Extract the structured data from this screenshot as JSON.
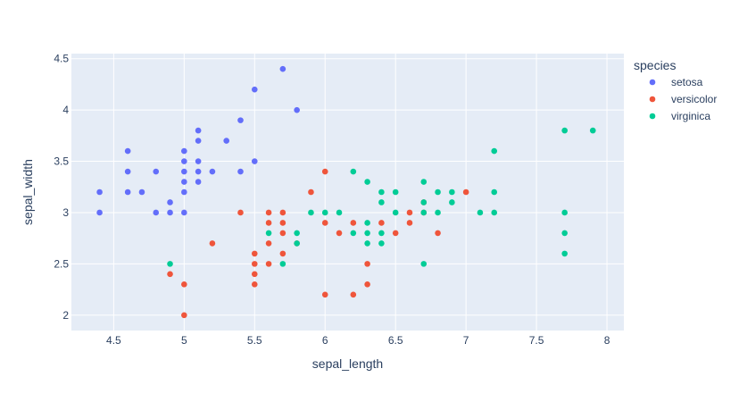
{
  "chart_data": {
    "type": "scatter",
    "xlabel": "sepal_length",
    "ylabel": "sepal_width",
    "xlim": [
      4.2,
      8.12
    ],
    "ylim": [
      1.85,
      4.55
    ],
    "x_ticks": [
      4.5,
      5,
      5.5,
      6,
      6.5,
      7,
      7.5,
      8
    ],
    "x_tick_labels": [
      "4.5",
      "5",
      "5.5",
      "6",
      "6.5",
      "7",
      "7.5",
      "8"
    ],
    "y_ticks": [
      2,
      2.5,
      3,
      3.5,
      4,
      4.5
    ],
    "y_tick_labels": [
      "2",
      "2.5",
      "3",
      "3.5",
      "4",
      "4.5"
    ],
    "grid": true,
    "legend_title": "species",
    "legend_position": "right",
    "plot_background": "#e5ecf6",
    "series": [
      {
        "name": "setosa",
        "color": "#636efa",
        "points": [
          [
            4.4,
            3.2
          ],
          [
            4.4,
            3.0
          ],
          [
            4.6,
            3.6
          ],
          [
            4.6,
            3.4
          ],
          [
            4.6,
            3.2
          ],
          [
            4.7,
            3.2
          ],
          [
            4.8,
            3.4
          ],
          [
            4.8,
            3.0
          ],
          [
            4.9,
            3.1
          ],
          [
            4.9,
            3.0
          ],
          [
            5.0,
            3.6
          ],
          [
            5.0,
            3.5
          ],
          [
            5.0,
            3.4
          ],
          [
            5.0,
            3.3
          ],
          [
            5.0,
            3.2
          ],
          [
            5.0,
            3.0
          ],
          [
            5.1,
            3.8
          ],
          [
            5.1,
            3.7
          ],
          [
            5.1,
            3.5
          ],
          [
            5.1,
            3.4
          ],
          [
            5.1,
            3.3
          ],
          [
            5.2,
            3.4
          ],
          [
            5.3,
            3.7
          ],
          [
            5.4,
            3.9
          ],
          [
            5.4,
            3.4
          ],
          [
            5.5,
            4.2
          ],
          [
            5.5,
            3.5
          ],
          [
            5.7,
            4.4
          ],
          [
            5.8,
            4.0
          ]
        ]
      },
      {
        "name": "versicolor",
        "color": "#ef553b",
        "points": [
          [
            4.9,
            2.4
          ],
          [
            5.0,
            2.3
          ],
          [
            5.0,
            2.0
          ],
          [
            5.2,
            2.7
          ],
          [
            5.4,
            3.0
          ],
          [
            5.5,
            2.6
          ],
          [
            5.5,
            2.5
          ],
          [
            5.5,
            2.4
          ],
          [
            5.5,
            2.3
          ],
          [
            5.6,
            3.0
          ],
          [
            5.6,
            2.9
          ],
          [
            5.6,
            2.7
          ],
          [
            5.6,
            2.5
          ],
          [
            5.7,
            3.0
          ],
          [
            5.7,
            2.9
          ],
          [
            5.7,
            2.8
          ],
          [
            5.7,
            2.6
          ],
          [
            5.8,
            2.7
          ],
          [
            5.9,
            3.2
          ],
          [
            6.0,
            3.4
          ],
          [
            6.0,
            2.9
          ],
          [
            6.0,
            2.2
          ],
          [
            6.1,
            2.8
          ],
          [
            6.2,
            2.9
          ],
          [
            6.2,
            2.2
          ],
          [
            6.3,
            2.5
          ],
          [
            6.3,
            2.3
          ],
          [
            6.4,
            2.9
          ],
          [
            6.5,
            2.8
          ],
          [
            6.6,
            3.0
          ],
          [
            6.6,
            2.9
          ],
          [
            6.7,
            3.1
          ],
          [
            6.7,
            3.0
          ],
          [
            6.8,
            2.8
          ],
          [
            7.0,
            3.2
          ]
        ]
      },
      {
        "name": "virginica",
        "color": "#00cc96",
        "points": [
          [
            4.9,
            2.5
          ],
          [
            5.6,
            2.8
          ],
          [
            5.7,
            2.5
          ],
          [
            5.8,
            2.8
          ],
          [
            5.8,
            2.7
          ],
          [
            5.9,
            3.0
          ],
          [
            6.0,
            3.0
          ],
          [
            6.1,
            3.0
          ],
          [
            6.2,
            3.4
          ],
          [
            6.2,
            2.8
          ],
          [
            6.3,
            3.3
          ],
          [
            6.3,
            2.9
          ],
          [
            6.3,
            2.8
          ],
          [
            6.3,
            2.7
          ],
          [
            6.4,
            3.2
          ],
          [
            6.4,
            3.1
          ],
          [
            6.4,
            2.8
          ],
          [
            6.4,
            2.7
          ],
          [
            6.5,
            3.2
          ],
          [
            6.5,
            3.0
          ],
          [
            6.7,
            3.3
          ],
          [
            6.7,
            3.1
          ],
          [
            6.7,
            3.0
          ],
          [
            6.7,
            2.5
          ],
          [
            6.8,
            3.2
          ],
          [
            6.8,
            3.0
          ],
          [
            6.9,
            3.2
          ],
          [
            6.9,
            3.1
          ],
          [
            7.1,
            3.0
          ],
          [
            7.2,
            3.6
          ],
          [
            7.2,
            3.2
          ],
          [
            7.2,
            3.0
          ],
          [
            7.7,
            3.8
          ],
          [
            7.7,
            3.0
          ],
          [
            7.7,
            2.8
          ],
          [
            7.7,
            2.6
          ],
          [
            7.9,
            3.8
          ]
        ]
      }
    ]
  }
}
